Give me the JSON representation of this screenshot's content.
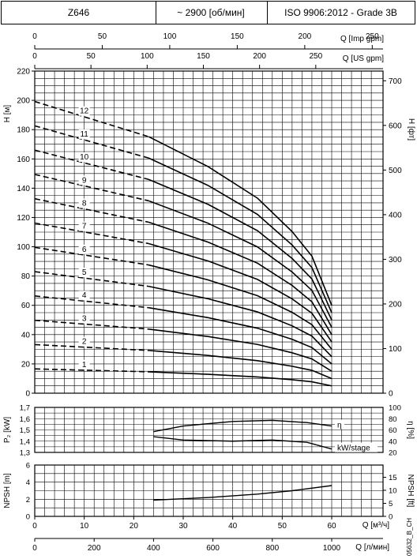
{
  "header": {
    "model": "Z646",
    "speed": "~ 2900 [об/мин]",
    "standard": "ISO 9906:2012 - Grade 3B"
  },
  "colors": {
    "line": "#000000",
    "grid": "#000000",
    "background": "#ffffff"
  },
  "chart_data": [
    {
      "type": "line",
      "name": "head",
      "x_axis": "flow_m3h",
      "xlim": [
        0,
        60
      ],
      "ylim": [
        0,
        220
      ],
      "ylabel": "H [м]",
      "y2label": "H [фт]",
      "y_ticks": [
        0,
        20,
        40,
        60,
        80,
        100,
        120,
        140,
        160,
        180,
        200,
        220
      ],
      "y2_ticks": [
        0,
        100,
        200,
        300,
        400,
        500,
        600,
        700
      ],
      "y2_per_unit": 3.28084,
      "top_axes": [
        {
          "label": "Q [Imp gpm]",
          "ticks": [
            0,
            50,
            100,
            150,
            200,
            250
          ],
          "per_m3h": 3.6662
        },
        {
          "label": "Q [US gpm]",
          "ticks": [
            0,
            50,
            100,
            150,
            200,
            250
          ],
          "per_m3h": 4.4029
        }
      ],
      "dash_until": 23,
      "series": [
        {
          "name": "1",
          "x": [
            0,
            23,
            35,
            45,
            52,
            56,
            60
          ],
          "y": [
            16.6,
            14.6,
            12.9,
            11.1,
            9.2,
            7.8,
            5.0
          ]
        },
        {
          "name": "2",
          "x": [
            0,
            23,
            35,
            45,
            52,
            56,
            60
          ],
          "y": [
            33.2,
            29.2,
            25.8,
            22.2,
            18.4,
            15.6,
            10.0
          ]
        },
        {
          "name": "3",
          "x": [
            0,
            23,
            35,
            45,
            52,
            56,
            60
          ],
          "y": [
            49.8,
            43.8,
            38.7,
            33.3,
            27.6,
            23.4,
            15.0
          ]
        },
        {
          "name": "4",
          "x": [
            0,
            23,
            35,
            45,
            52,
            56,
            60
          ],
          "y": [
            66.4,
            58.4,
            51.6,
            44.4,
            36.8,
            31.2,
            20.0
          ]
        },
        {
          "name": "5",
          "x": [
            0,
            23,
            35,
            45,
            52,
            56,
            60
          ],
          "y": [
            83.0,
            73.0,
            64.5,
            55.5,
            46.0,
            39.0,
            25.0
          ]
        },
        {
          "name": "6",
          "x": [
            0,
            23,
            35,
            45,
            52,
            56,
            60
          ],
          "y": [
            99.6,
            87.6,
            77.4,
            66.6,
            55.2,
            46.8,
            30.0
          ]
        },
        {
          "name": "7",
          "x": [
            0,
            23,
            35,
            45,
            52,
            56,
            60
          ],
          "y": [
            116.2,
            102.2,
            90.3,
            77.7,
            64.4,
            54.6,
            35.0
          ]
        },
        {
          "name": "8",
          "x": [
            0,
            23,
            35,
            45,
            52,
            56,
            60
          ],
          "y": [
            132.8,
            116.8,
            103.2,
            88.8,
            73.6,
            62.4,
            40.0
          ]
        },
        {
          "name": "9",
          "x": [
            0,
            23,
            35,
            45,
            52,
            56,
            60
          ],
          "y": [
            149.4,
            131.4,
            116.1,
            99.9,
            82.8,
            70.2,
            45.0
          ]
        },
        {
          "name": "10",
          "x": [
            0,
            23,
            35,
            45,
            52,
            56,
            60
          ],
          "y": [
            166.0,
            146.0,
            129.0,
            111.0,
            92.0,
            78.0,
            50.0
          ]
        },
        {
          "name": "11",
          "x": [
            0,
            23,
            35,
            45,
            52,
            56,
            60
          ],
          "y": [
            182.6,
            160.6,
            141.9,
            122.1,
            101.2,
            85.8,
            55.0
          ]
        },
        {
          "name": "12",
          "x": [
            0,
            23,
            35,
            45,
            52,
            56,
            60
          ],
          "y": [
            199.2,
            175.2,
            154.8,
            133.2,
            110.4,
            93.6,
            60.0
          ]
        }
      ]
    },
    {
      "type": "line",
      "name": "power_efficiency",
      "xlim": [
        0,
        60
      ],
      "ylim": [
        1.3,
        1.7
      ],
      "ylabel": "P₂ [kW]",
      "y_ticks": [
        1.3,
        1.4,
        1.5,
        1.6,
        1.7
      ],
      "y_ticklabels": [
        "1,3",
        "1,4",
        "1,5",
        "1,6",
        "1,7"
      ],
      "y2label": "η [%]",
      "y2lim": [
        20,
        100
      ],
      "y2_ticks": [
        20,
        40,
        60,
        80,
        100
      ],
      "series": [
        {
          "name": "η",
          "axis": "y2",
          "x": [
            24,
            30,
            40,
            48,
            55,
            60
          ],
          "y": [
            57,
            67,
            75,
            77,
            73,
            67
          ]
        },
        {
          "name": "kW/stage",
          "axis": "y",
          "x": [
            24,
            30,
            40,
            48,
            55,
            60
          ],
          "y": [
            1.44,
            1.41,
            1.4,
            1.41,
            1.39,
            1.33
          ]
        }
      ]
    },
    {
      "type": "line",
      "name": "npsh",
      "xlim": [
        0,
        60
      ],
      "ylim": [
        0,
        6
      ],
      "ylabel": "NPSH [m]",
      "y_ticks": [
        0,
        2,
        4,
        6
      ],
      "y2label": "NPSH [ft]",
      "y2_ticks": [
        0,
        5,
        10,
        15
      ],
      "y2_per_unit": 3.28084,
      "series": [
        {
          "name": "NPSH",
          "x": [
            24,
            35,
            45,
            52,
            60
          ],
          "y": [
            1.9,
            2.2,
            2.6,
            3.0,
            3.6
          ]
        }
      ]
    }
  ],
  "bottom_axes": [
    {
      "label": "Q [м³/ч]",
      "ticks": [
        0,
        10,
        20,
        30,
        40,
        50,
        60
      ]
    },
    {
      "label": "Q [л/мин]",
      "ticks": [
        0,
        200,
        400,
        600,
        800,
        1000
      ],
      "per_m3h": 16.6667
    }
  ],
  "footer_code": "05632_B_CH"
}
